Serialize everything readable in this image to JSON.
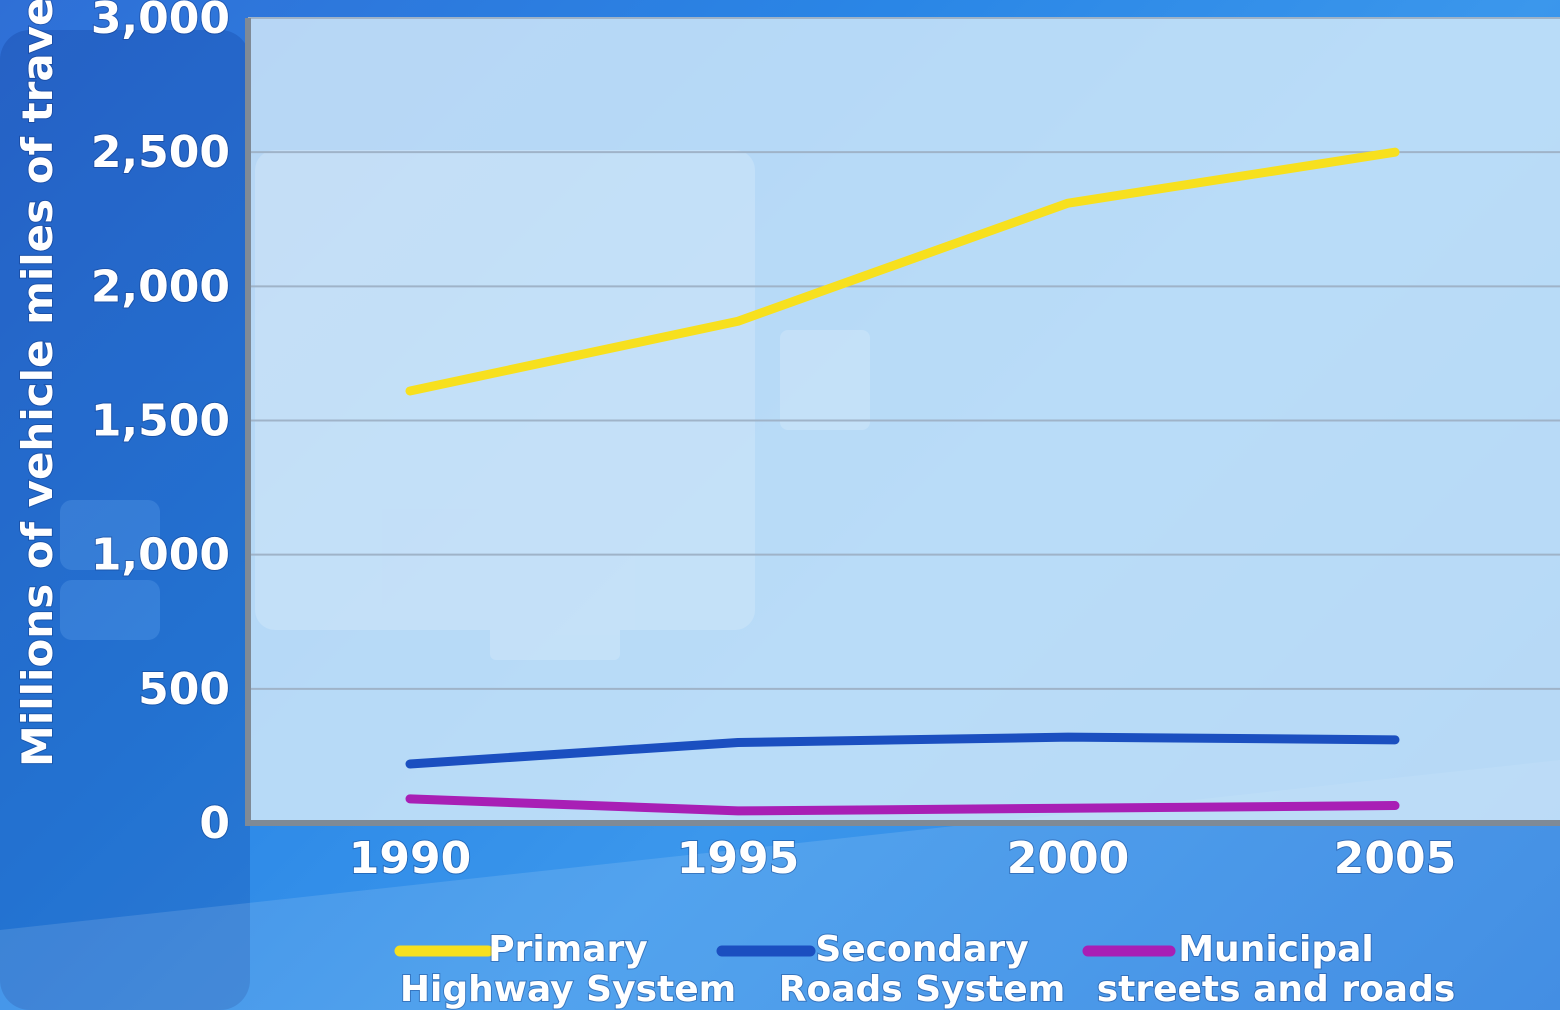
{
  "chart_data": {
    "type": "line",
    "ylabel": "Millions of vehicle miles of travel",
    "xlabel": "",
    "x": [
      "1990",
      "1995",
      "2000",
      "2005"
    ],
    "ylim": [
      0,
      3000
    ],
    "yticks": [
      0,
      500,
      1000,
      1500,
      2000,
      2500,
      3000
    ],
    "ytick_labels": [
      "0",
      "500",
      "1,000",
      "1,500",
      "2,000",
      "2,500",
      "3,000"
    ],
    "grid": true,
    "legend_position": "bottom",
    "series": [
      {
        "name": "Primary Highway System",
        "name_lines": [
          "Primary",
          "Highway System"
        ],
        "color": "#f7e01e",
        "values": [
          1610,
          1870,
          2310,
          2500
        ]
      },
      {
        "name": "Secondary Roads System",
        "name_lines": [
          "Secondary",
          "Roads System"
        ],
        "color": "#1b4fc0",
        "values": [
          220,
          300,
          320,
          310
        ]
      },
      {
        "name": "Municipal streets and roads",
        "name_lines": [
          "Municipal",
          "streets and roads"
        ],
        "color": "#a81fb5",
        "values": [
          90,
          45,
          55,
          65
        ]
      }
    ]
  }
}
